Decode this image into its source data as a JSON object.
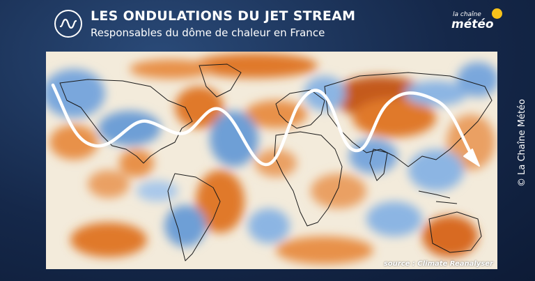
{
  "header": {
    "title": "LES ONDULATIONS DU JET STREAM",
    "subtitle": "Responsables du dôme de chaleur en France"
  },
  "brand": {
    "line1": "la chaîne",
    "line2": "météo",
    "sun_color": "#f7c21a"
  },
  "map": {
    "source": "source : Climate Reanalyser",
    "warm_color": "#e0792b",
    "cool_color": "#6e9fd6",
    "arrow_color": "#ffffff"
  },
  "copyright": "© La Chaîne Météo"
}
